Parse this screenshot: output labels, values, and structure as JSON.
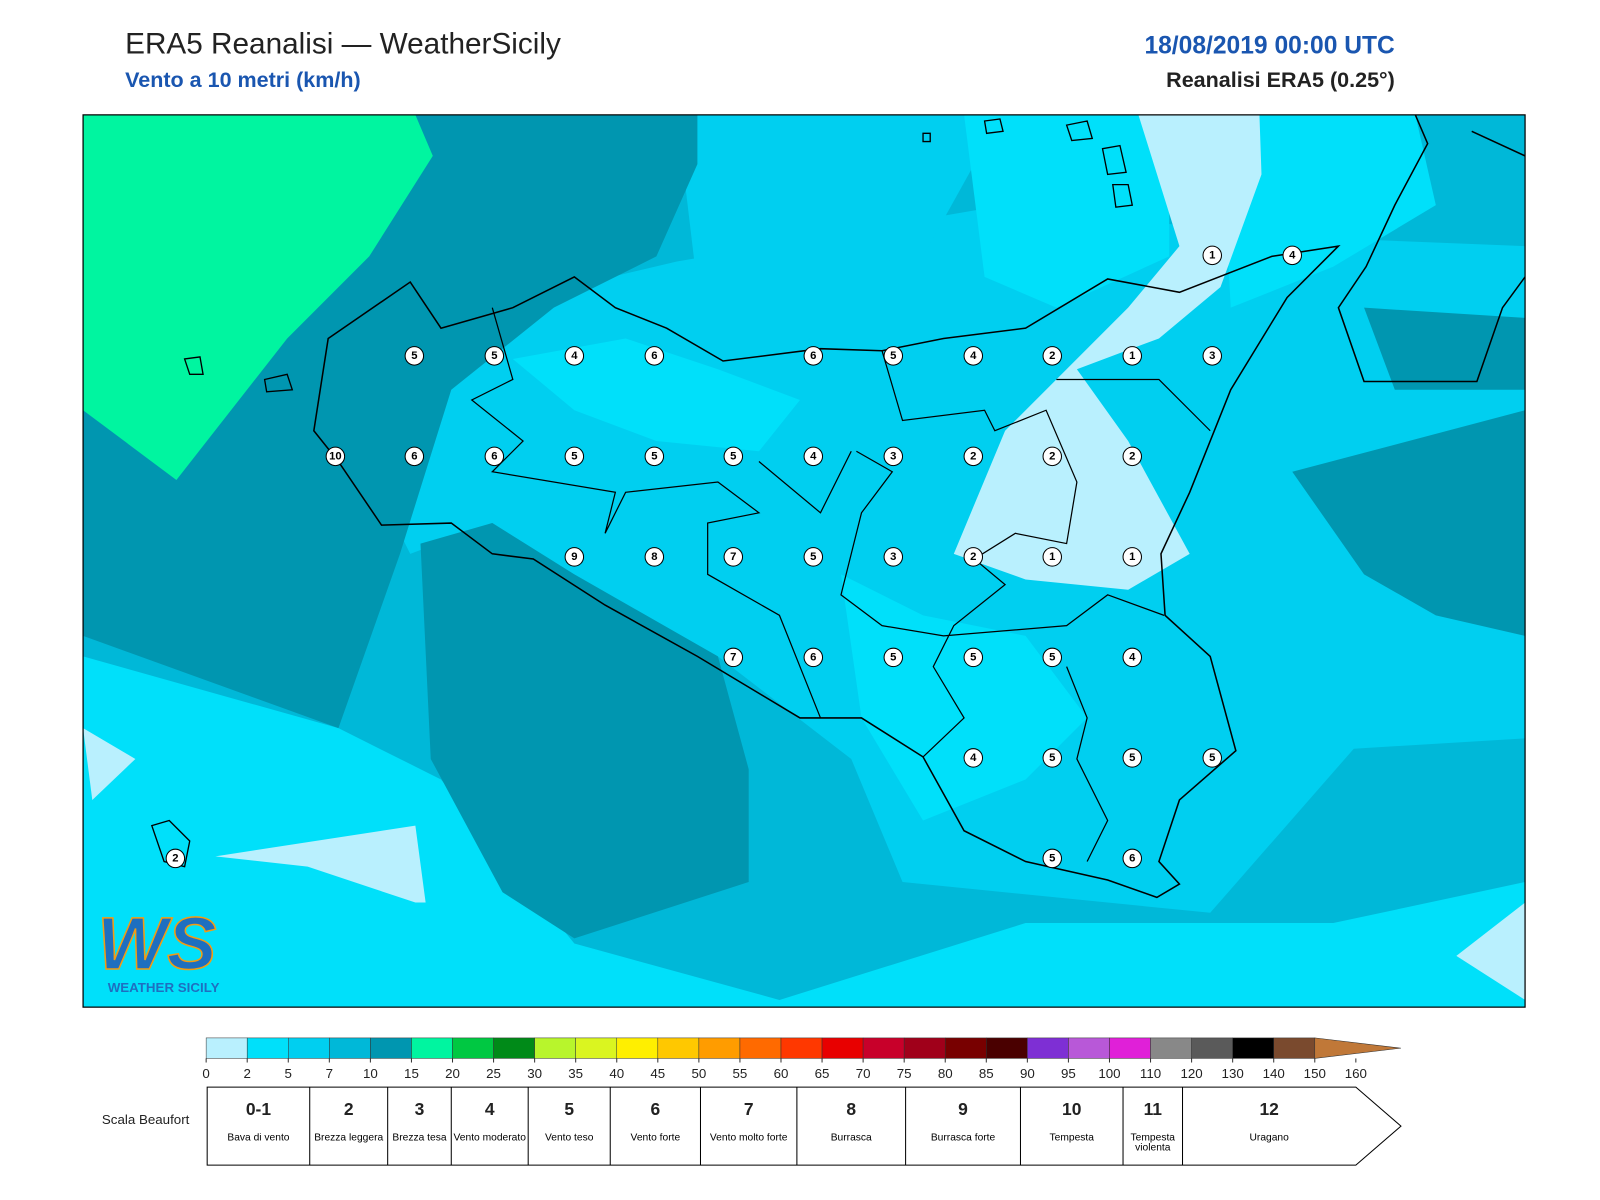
{
  "header": {
    "title": "ERA5 Reanalisi — WeatherSicily",
    "subtitle": "Vento a 10 metri (km/h)",
    "datetime": "18/08/2019 00:00 UTC",
    "source": "Reanalisi ERA5 (0.25°)"
  },
  "map": {
    "stations": [
      1,
      4,
      5,
      5,
      4,
      6,
      6,
      5,
      4,
      2,
      1,
      3,
      10,
      6,
      6,
      5,
      5,
      5,
      4,
      3,
      2,
      2,
      2,
      9,
      8,
      7,
      5,
      3,
      2,
      1,
      1,
      7,
      6,
      5,
      5,
      5,
      4,
      4,
      5,
      5,
      5,
      2,
      5,
      6
    ]
  },
  "logo": {
    "text": "WS",
    "subtext": "WEATHER SICILY"
  },
  "colorbar": {
    "ticks": [
      0,
      2,
      5,
      7,
      10,
      15,
      20,
      25,
      30,
      35,
      40,
      45,
      50,
      55,
      60,
      65,
      70,
      75,
      80,
      85,
      90,
      95,
      100,
      110,
      120,
      130,
      140,
      150,
      160
    ],
    "colors": [
      "#b9f0fe",
      "#00e0fa",
      "#00cff0",
      "#00b8d8",
      "#0096b0",
      "#00f5a0",
      "#00c842",
      "#008a18",
      "#b8f52c",
      "#daf520",
      "#ffef00",
      "#ffc800",
      "#ff9c00",
      "#ff6a00",
      "#ff3800",
      "#e80000",
      "#c8002a",
      "#a0001a",
      "#780000",
      "#4a0000",
      "#7e2fd4",
      "#b858d8",
      "#e020d8",
      "#888888",
      "#5a5a5a",
      "#000000",
      "#7a4a2e",
      "#c07838"
    ]
  },
  "beaufort": {
    "title": "Scala Beaufort",
    "scale": [
      {
        "force": "0-1",
        "label": "Bava di vento"
      },
      {
        "force": 2,
        "label": "Brezza leggera"
      },
      {
        "force": 3,
        "label": "Brezza tesa"
      },
      {
        "force": 4,
        "label": "Vento moderato"
      },
      {
        "force": 5,
        "label": "Vento teso"
      },
      {
        "force": 6,
        "label": "Vento forte"
      },
      {
        "force": 7,
        "label": "Vento molto forte"
      },
      {
        "force": 8,
        "label": "Burrasca"
      },
      {
        "force": 9,
        "label": "Burrasca forte"
      },
      {
        "force": 10,
        "label": "Tempesta"
      },
      {
        "force": 11,
        "label": "Tempesta violenta"
      },
      {
        "force": 12,
        "label": "Uragano"
      }
    ]
  }
}
